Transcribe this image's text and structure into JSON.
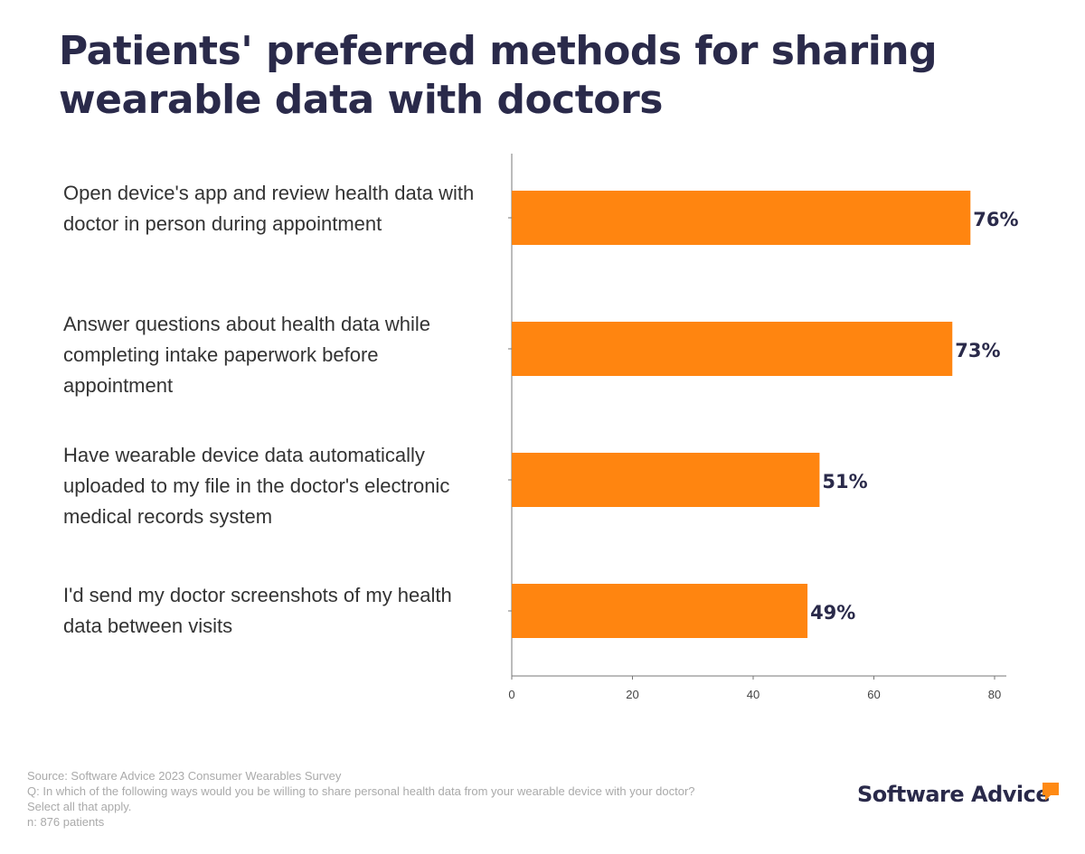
{
  "chart_data": {
    "type": "bar",
    "orientation": "horizontal",
    "title": "Patients' preferred methods for sharing wearable data with doctors",
    "categories": [
      "Open device's app and review health data with doctor in person during appointment",
      "Answer questions about  health data while completing intake paperwork before  appointment",
      "Have wearable device data automatically uploaded to my file in the doctor's electronic medical records system",
      "I'd send my doctor screenshots of my health data between visits"
    ],
    "values": [
      76,
      73,
      51,
      49
    ],
    "data_labels": [
      "76%",
      "73%",
      "51%",
      "49%"
    ],
    "xlim": [
      0,
      80
    ],
    "xticks": [
      "0",
      "20",
      "40",
      "60",
      "80"
    ],
    "xlabel": "",
    "ylabel": "",
    "grid": false,
    "bar_color": "#ff8510",
    "label_color": "#2a2a4a"
  },
  "footer": {
    "source": "Source: Software Advice 2023 Consumer Wearables Survey",
    "question": "Q: In which of the following ways would you be willing to share personal health data from your wearable device with your doctor?",
    "instruction": "Select all that apply.",
    "n": "n: 876 patients"
  },
  "logo": {
    "text": "Software Advice",
    "accent": "#ff8a14"
  }
}
